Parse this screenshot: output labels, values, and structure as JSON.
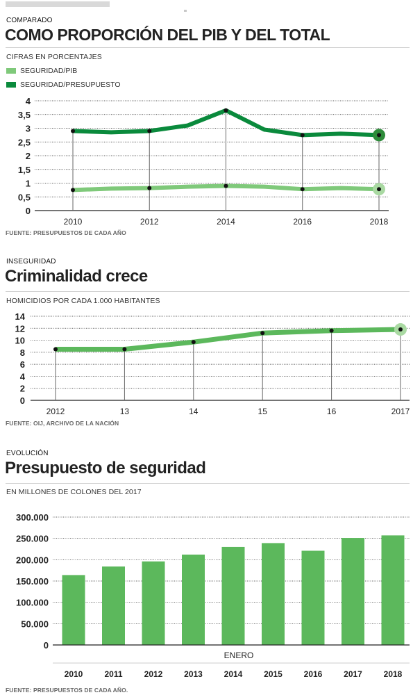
{
  "colors": {
    "dark_green": "#0a8a3c",
    "light_green": "#7fc97a",
    "bar_green": "#5cb85c",
    "marker_halo_dark": "#2e8b3a",
    "marker_halo_light": "#a9d9a2"
  },
  "section1": {
    "kicker": "COMPARADO",
    "title": "COMO PROPORCIÓN DEL PIB Y DEL TOTAL",
    "subtitle": "CIFRAS EN PORCENTAJES",
    "legend": [
      {
        "label": "SEGURIDAD/PIB",
        "color": "#7fc97a"
      },
      {
        "label": "SEGURIDAD/PRESUPUESTO",
        "color": "#0a8a3c"
      }
    ],
    "source": "FUENTE: PRESUPUESTOS DE CADA AÑO"
  },
  "section2": {
    "kicker": "INSEGURIDAD",
    "title": "Criminalidad crece",
    "subtitle": "HOMICIDIOS POR CADA 1.000 HABITANTES",
    "source": "FUENTE: OIJ, ARCHIVO DE LA NACIÓN"
  },
  "section3": {
    "kicker": "EVOLUCIÓN",
    "title": "Presupuesto de seguridad",
    "subtitle": "EN MILLONES DE COLONES DEL 2017",
    "source": "FUENTE: PRESUPUESTOS DE CADA AÑO."
  },
  "chart_data": [
    {
      "type": "line",
      "title": "COMO PROPORCIÓN DEL PIB Y DEL TOTAL",
      "subtitle": "CIFRAS EN PORCENTAJES",
      "x": [
        2010,
        2011,
        2012,
        2013,
        2014,
        2015,
        2016,
        2017,
        2018
      ],
      "x_ticks": [
        "2010",
        "2012",
        "2014",
        "2016",
        "2018"
      ],
      "y_ticks": [
        "0",
        "0,5",
        "1",
        "1,5",
        "2",
        "2,5",
        "3",
        "3,5",
        "4"
      ],
      "y_tick_values": [
        0,
        0.5,
        1,
        1.5,
        2,
        2.5,
        3,
        3.5,
        4
      ],
      "ylim": [
        0,
        4
      ],
      "marker_x": [
        2010,
        2012,
        2014,
        2016,
        2018
      ],
      "series": [
        {
          "name": "SEGURIDAD/PRESUPUESTO",
          "color": "#0a8a3c",
          "values": [
            2.9,
            2.85,
            2.9,
            3.1,
            3.65,
            2.95,
            2.75,
            2.8,
            2.75
          ]
        },
        {
          "name": "SEGURIDAD/PIB",
          "color": "#7fc97a",
          "values": [
            0.75,
            0.8,
            0.82,
            0.87,
            0.9,
            0.87,
            0.78,
            0.82,
            0.78
          ]
        }
      ],
      "grid": true
    },
    {
      "type": "line",
      "title": "Criminalidad crece",
      "subtitle": "HOMICIDIOS POR CADA 1.000 HABITANTES",
      "x_ticks": [
        "2012",
        "13",
        "14",
        "15",
        "16",
        "2017"
      ],
      "y_ticks": [
        "0",
        "2",
        "4",
        "6",
        "8",
        "10",
        "12",
        "14"
      ],
      "y_tick_values": [
        0,
        2,
        4,
        6,
        8,
        10,
        12,
        14
      ],
      "ylim": [
        0,
        14
      ],
      "series": [
        {
          "color": "#5cb85c",
          "values": [
            8.5,
            8.5,
            9.7,
            11.2,
            11.6,
            11.8
          ]
        }
      ],
      "grid": true
    },
    {
      "type": "bar",
      "title": "Presupuesto de seguridad",
      "subtitle": "EN MILLONES DE COLONES DEL 2017",
      "xlabel": "ENERO",
      "categories": [
        "2010",
        "2011",
        "2012",
        "2013",
        "2014",
        "2015",
        "2016",
        "2017",
        "2018"
      ],
      "values": [
        164000,
        184000,
        196000,
        212000,
        230000,
        239000,
        221000,
        251000,
        257000
      ],
      "y_ticks": [
        "0",
        "50.000",
        "100.000",
        "150.000",
        "200.000",
        "250.000",
        "300.000"
      ],
      "y_tick_values": [
        0,
        50000,
        100000,
        150000,
        200000,
        250000,
        300000
      ],
      "ylim": [
        0,
        300000
      ],
      "grid": true
    }
  ]
}
